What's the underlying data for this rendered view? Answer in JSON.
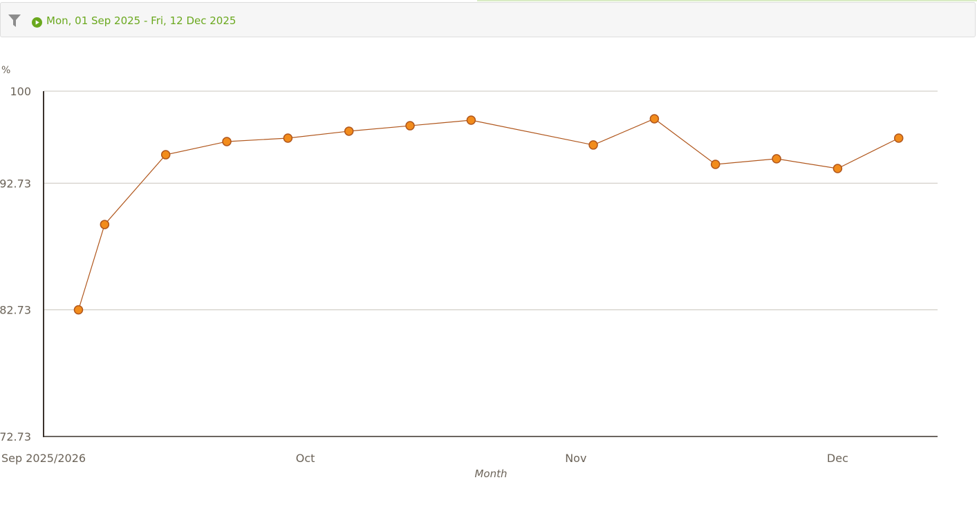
{
  "filter": {
    "icon": "filter-icon",
    "play_icon": "play-circle-icon",
    "date_range": "Mon, 01 Sep 2025 - Fri, 12 Dec 2025",
    "accent": "#6aa81e"
  },
  "chart_data": {
    "type": "line",
    "ylabel": "%",
    "xlabel": "Month",
    "ylim": [
      72.73,
      100
    ],
    "yticks": [
      "100",
      "92.73",
      "82.73",
      "72.73"
    ],
    "ytick_values": [
      100,
      92.73,
      82.73,
      72.73
    ],
    "xticks": [
      {
        "label": "Sep 2025/2026",
        "date": "2025-09-01"
      },
      {
        "label": "Oct",
        "date": "2025-10-01"
      },
      {
        "label": "Nov",
        "date": "2025-11-01"
      },
      {
        "label": "Dec",
        "date": "2025-12-01"
      }
    ],
    "xlim": [
      "2025-09-01",
      "2025-12-12"
    ],
    "grid": true,
    "line_color": "#b0561c",
    "marker_color": "#f28c1c",
    "points": [
      {
        "x": "2025-09-05",
        "y": 82.73
      },
      {
        "x": "2025-09-08",
        "y": 89.47
      },
      {
        "x": "2025-09-15",
        "y": 94.98
      },
      {
        "x": "2025-09-22",
        "y": 96.02
      },
      {
        "x": "2025-09-29",
        "y": 96.29
      },
      {
        "x": "2025-10-06",
        "y": 96.84
      },
      {
        "x": "2025-10-13",
        "y": 97.27
      },
      {
        "x": "2025-10-20",
        "y": 97.71
      },
      {
        "x": "2025-11-03",
        "y": 95.75
      },
      {
        "x": "2025-11-10",
        "y": 97.82
      },
      {
        "x": "2025-11-17",
        "y": 94.22
      },
      {
        "x": "2025-11-24",
        "y": 94.66
      },
      {
        "x": "2025-12-01",
        "y": 93.89
      },
      {
        "x": "2025-12-08",
        "y": 96.29
      }
    ]
  }
}
